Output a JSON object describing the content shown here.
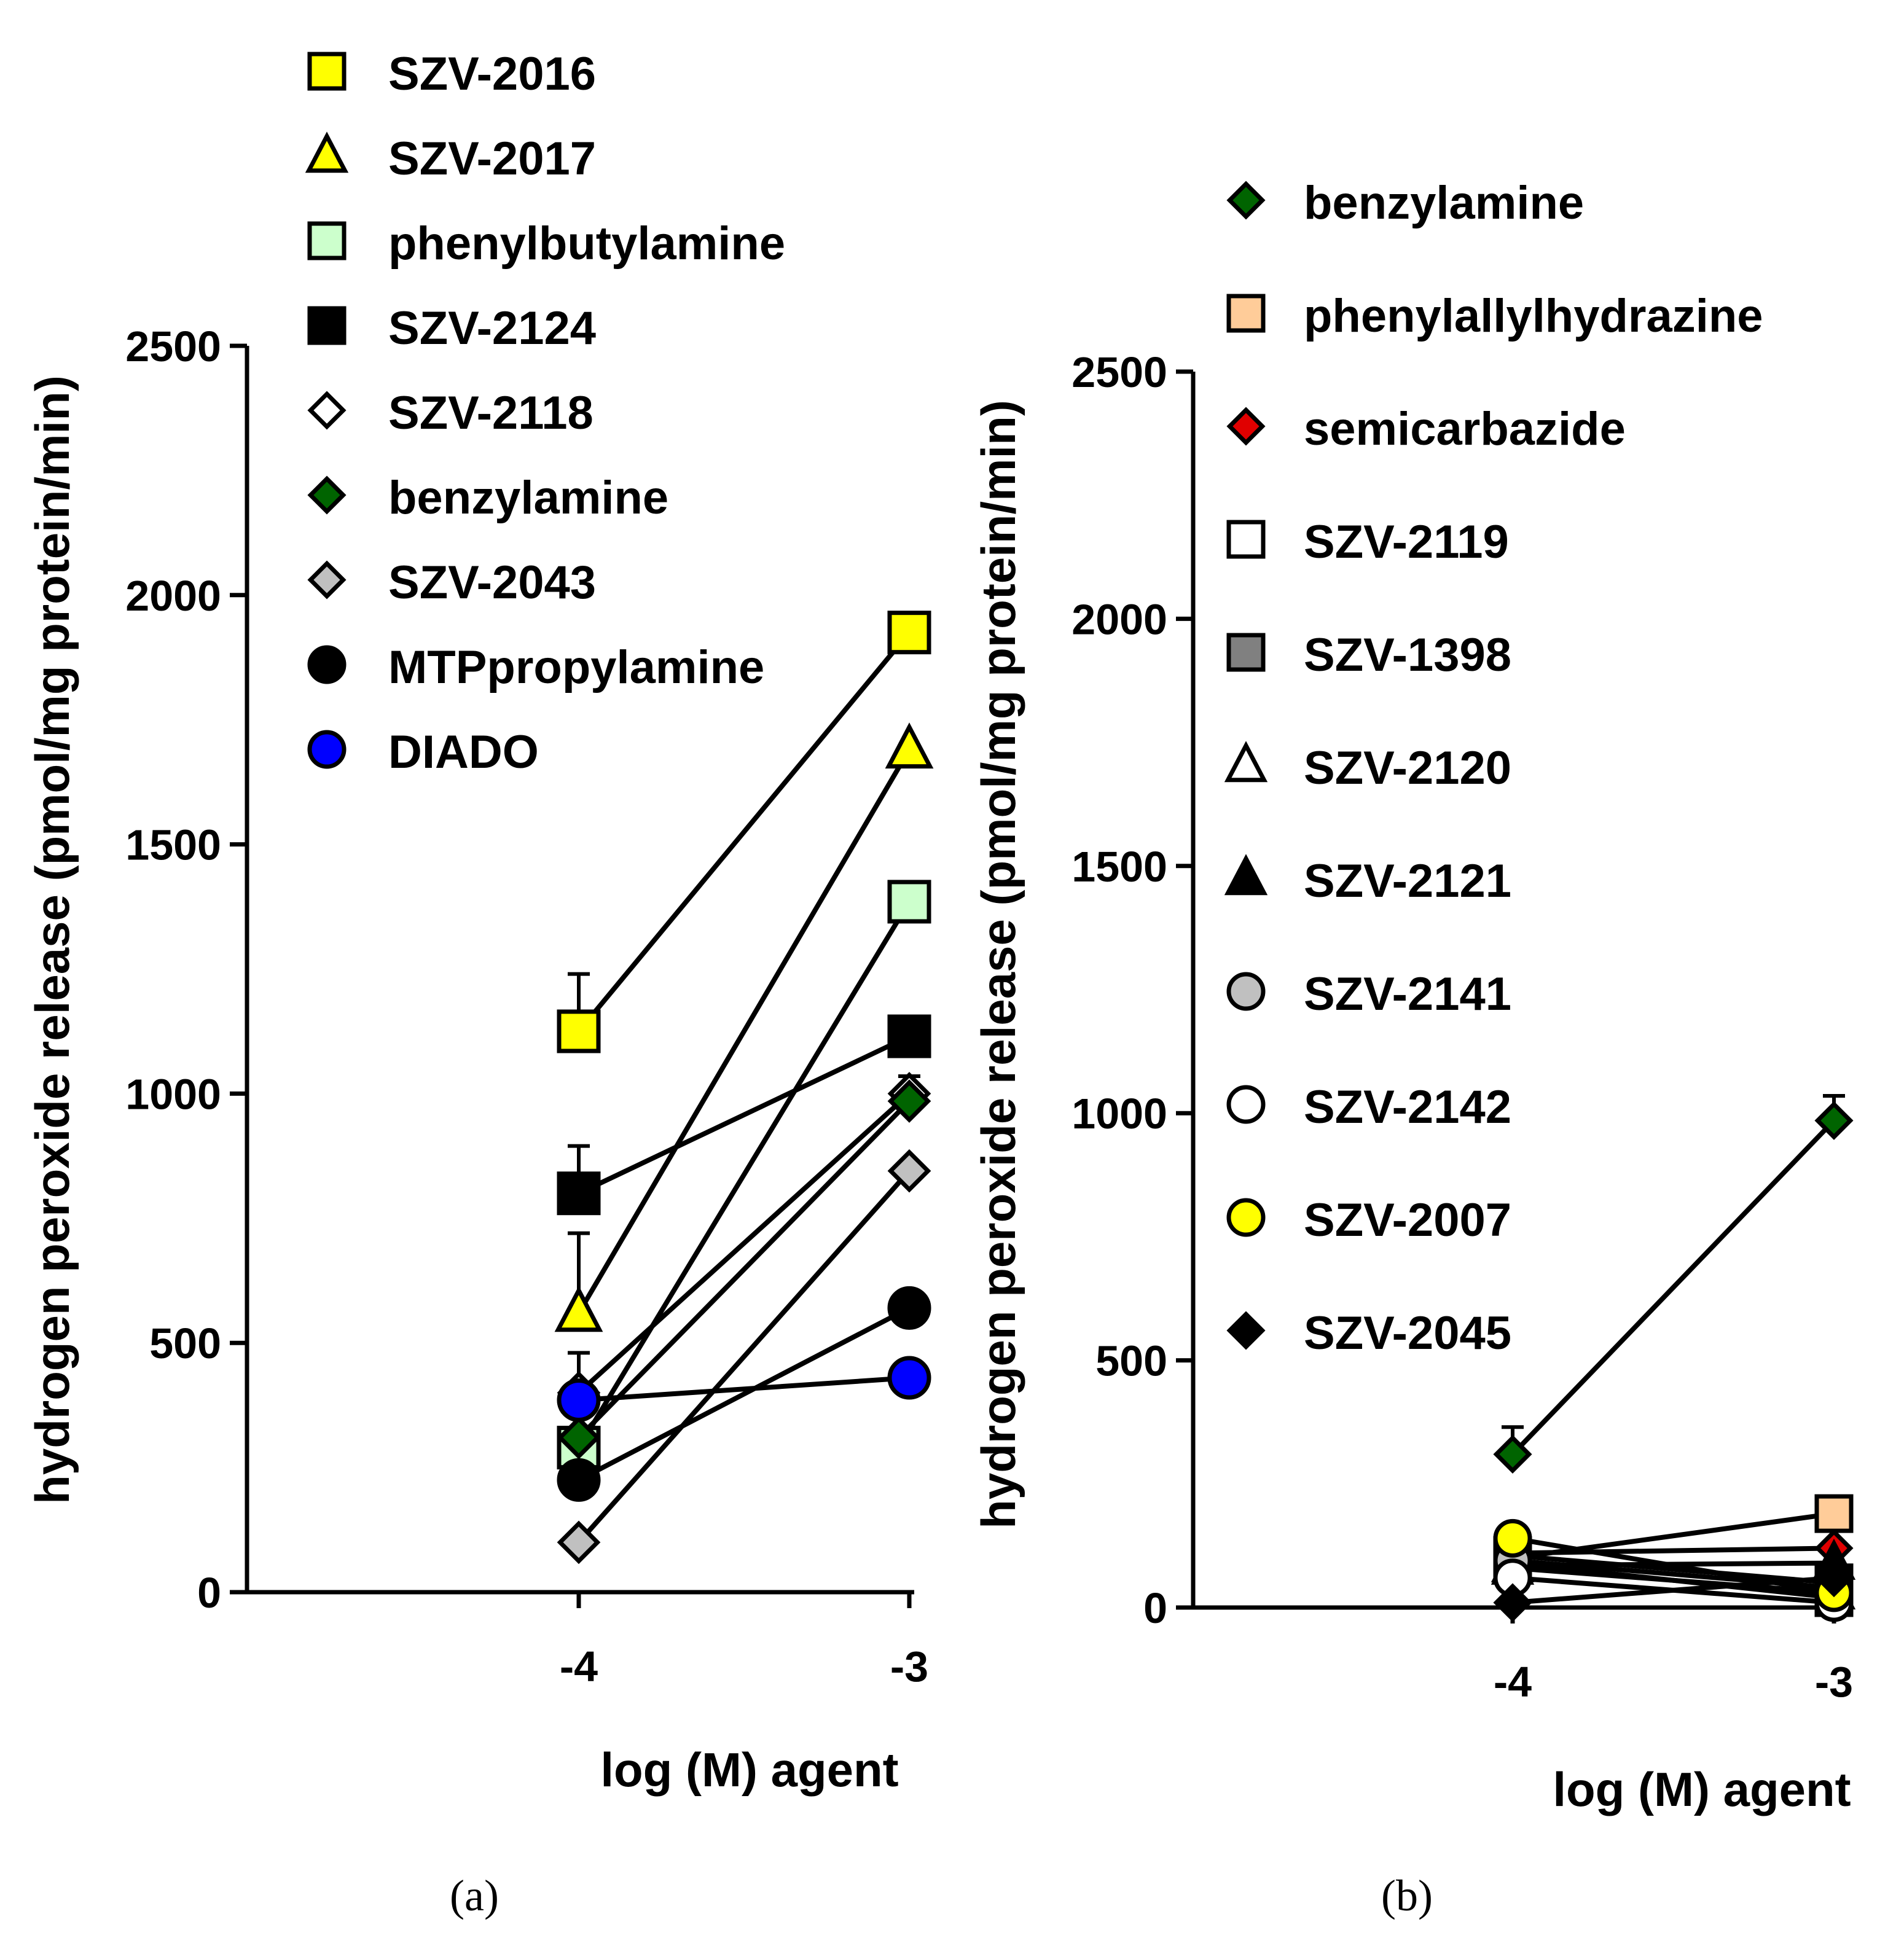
{
  "chart_data": [
    {
      "type": "line",
      "panel_label": "(a)",
      "xlabel": "log (M) agent",
      "ylabel": "hydrogen peroxide release (pmol/mg protein/min)",
      "x": [
        -4,
        -3
      ],
      "xtick_labels": [
        "-4",
        "-3"
      ],
      "ylim": [
        0,
        2500
      ],
      "yticks": [
        0,
        500,
        1000,
        1500,
        2000,
        2500
      ],
      "legend_placement": "top-left",
      "series": [
        {
          "name": "SZV-2016",
          "marker": "square",
          "color": "#ffff00",
          "values": [
            1125,
            1925
          ],
          "errors": [
            115,
            0
          ]
        },
        {
          "name": "SZV-2017",
          "marker": "triangle",
          "color": "#ffff00",
          "values": [
            560,
            1690
          ],
          "errors": [
            160,
            0
          ]
        },
        {
          "name": "phenylbutylamine",
          "marker": "square",
          "color": "#ccffcc",
          "values": [
            290,
            1385
          ],
          "errors": [
            0,
            0
          ]
        },
        {
          "name": "SZV-2124",
          "marker": "square",
          "color": "#000000",
          "values": [
            800,
            1115
          ],
          "errors": [
            95,
            0
          ]
        },
        {
          "name": "SZV-2118",
          "marker": "diamond",
          "color": "#ffffff",
          "values": [
            400,
            1000
          ],
          "errors": [
            80,
            0
          ]
        },
        {
          "name": "benzylamine",
          "marker": "diamond",
          "color": "#006400",
          "values": [
            310,
            985
          ],
          "errors": [
            55,
            50
          ]
        },
        {
          "name": "SZV-2043",
          "marker": "diamond",
          "color": "#c0c0c0",
          "values": [
            100,
            845
          ],
          "errors": [
            0,
            0
          ]
        },
        {
          "name": "MTPpropylamine",
          "marker": "circle",
          "color": "#000000",
          "values": [
            225,
            570
          ],
          "errors": [
            0,
            0
          ]
        },
        {
          "name": "DIADO",
          "marker": "circle",
          "color": "#0000ff",
          "values": [
            385,
            430
          ],
          "errors": [
            0,
            0
          ]
        }
      ]
    },
    {
      "type": "line",
      "panel_label": "(b)",
      "xlabel": "log (M) agent",
      "ylabel": "hydrogen peroxide release (pmol/mg protein/min)",
      "x": [
        -4,
        -3
      ],
      "xtick_labels": [
        "-4",
        "-3"
      ],
      "ylim": [
        0,
        2500
      ],
      "yticks": [
        0,
        500,
        1000,
        1500,
        2000,
        2500
      ],
      "legend_placement": "top-right",
      "series": [
        {
          "name": "benzylamine",
          "marker": "diamond",
          "color": "#006400",
          "values": [
            310,
            985
          ],
          "errors": [
            55,
            50
          ]
        },
        {
          "name": "phenylallylhydrazine",
          "marker": "square",
          "color": "#ffcc99",
          "values": [
            100,
            190
          ],
          "errors": [
            0,
            0
          ]
        },
        {
          "name": "semicarbazide",
          "marker": "diamond",
          "color": "#e00000",
          "values": [
            110,
            120
          ],
          "errors": [
            0,
            0
          ]
        },
        {
          "name": "SZV-2119",
          "marker": "square",
          "color": "#ffffff",
          "values": [
            90,
            20
          ],
          "errors": [
            0,
            0
          ]
        },
        {
          "name": "SZV-1398",
          "marker": "square",
          "color": "#808080",
          "values": [
            105,
            50
          ],
          "errors": [
            0,
            0
          ]
        },
        {
          "name": "SZV-2120",
          "marker": "triangle",
          "color": "#ffffff",
          "values": [
            80,
            30
          ],
          "errors": [
            0,
            0
          ]
        },
        {
          "name": "SZV-2121",
          "marker": "triangle",
          "color": "#000000",
          "values": [
            85,
            90
          ],
          "errors": [
            0,
            0
          ]
        },
        {
          "name": "SZV-2141",
          "marker": "circle",
          "color": "#c0c0c0",
          "values": [
            95,
            40
          ],
          "errors": [
            0,
            0
          ]
        },
        {
          "name": "SZV-2142",
          "marker": "circle",
          "color": "#ffffff",
          "values": [
            60,
            10
          ],
          "errors": [
            0,
            0
          ]
        },
        {
          "name": "SZV-2007",
          "marker": "circle",
          "color": "#ffff00",
          "values": [
            140,
            30
          ],
          "errors": [
            0,
            0
          ]
        },
        {
          "name": "SZV-2045",
          "marker": "diamond",
          "color": "#000000",
          "values": [
            10,
            60
          ],
          "errors": [
            0,
            0
          ]
        }
      ]
    }
  ]
}
